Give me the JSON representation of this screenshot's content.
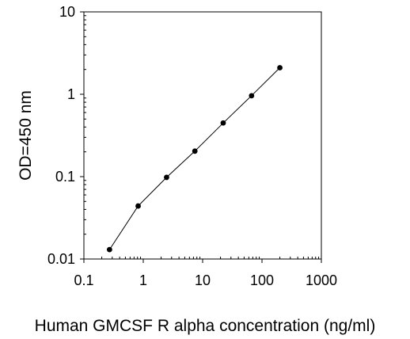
{
  "chart_data": {
    "type": "line",
    "xlabel": "Human GMCSF R alpha concentration (ng/ml)",
    "ylabel": "OD=450 nm",
    "x_scale": "log",
    "y_scale": "log",
    "xlim": [
      0.1,
      1000
    ],
    "ylim": [
      0.01,
      10
    ],
    "x_tick_labels": [
      "0.1",
      "1",
      "10",
      "100",
      "1000"
    ],
    "y_tick_labels": [
      "0.01",
      "0.1",
      "1",
      "10"
    ],
    "grid": false,
    "series": [
      {
        "x": [
          0.27,
          0.82,
          2.47,
          7.4,
          22.2,
          66.7,
          200
        ],
        "y": [
          0.013,
          0.044,
          0.098,
          0.204,
          0.448,
          0.96,
          2.1
        ],
        "marker": "circle",
        "color": "#000000"
      }
    ]
  }
}
